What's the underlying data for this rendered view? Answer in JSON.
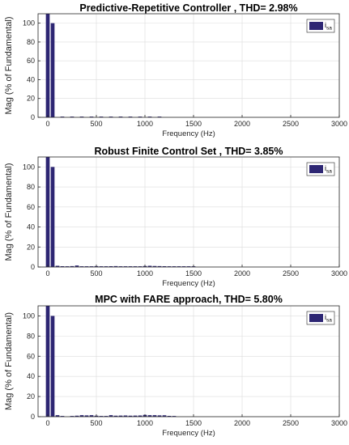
{
  "colors": {
    "bar": "#2d2673",
    "grid": "#dcdcdc",
    "axis": "#262626"
  },
  "chart_data": [
    {
      "type": "bar",
      "title": "Predictive-Repetitive Controller , THD= 2.98%",
      "xlabel": "Frequency (Hz)",
      "ylabel": "Mag (% of Fundamental)",
      "xlim": [
        -100,
        3000
      ],
      "ylim": [
        0,
        110
      ],
      "grid": true,
      "legend": {
        "label": "i",
        "subscript": "sa",
        "position": "top-right"
      },
      "xticks": [
        0,
        500,
        1000,
        1500,
        2000,
        2500,
        3000
      ],
      "yticks": [
        0,
        20,
        40,
        60,
        80,
        100
      ],
      "x": [
        0,
        50,
        150,
        250,
        350,
        450,
        550,
        650,
        750,
        850,
        950,
        1050,
        1150
      ],
      "values": [
        110,
        100,
        0.4,
        0.5,
        0.4,
        0.4,
        0.5,
        0.7,
        0.8,
        0.6,
        0.3,
        0.3,
        0.2
      ]
    },
    {
      "type": "bar",
      "title": "Robust Finite Control Set , THD= 3.85%",
      "xlabel": "Frequency (Hz)",
      "ylabel": "Mag (% of Fundamental)",
      "xlim": [
        -100,
        3000
      ],
      "ylim": [
        0,
        110
      ],
      "grid": true,
      "legend": {
        "label": "i",
        "subscript": "sa",
        "position": "top-right"
      },
      "xticks": [
        0,
        500,
        1000,
        1500,
        2000,
        2500,
        3000
      ],
      "yticks": [
        0,
        20,
        40,
        60,
        80,
        100
      ],
      "x": [
        0,
        50,
        100,
        150,
        200,
        250,
        300,
        350,
        400,
        450,
        500,
        550,
        600,
        650,
        700,
        750,
        800,
        850,
        900,
        950,
        1000,
        1050,
        1100,
        1150,
        1200,
        1250,
        1300,
        1350,
        1400,
        1450,
        1500
      ],
      "values": [
        110,
        100,
        1.2,
        0.8,
        0.6,
        0.9,
        1.5,
        0.5,
        0.4,
        0.5,
        0.9,
        0.6,
        0.5,
        0.8,
        0.9,
        0.4,
        0.3,
        0.3,
        0.3,
        0.3,
        1.0,
        1.2,
        1.0,
        0.9,
        0.8,
        0.6,
        0.4,
        0.3,
        0.3,
        0.4,
        0.2
      ]
    },
    {
      "type": "bar",
      "title": "MPC with FARE approach, THD= 5.80%",
      "xlabel": "Frequency (Hz)",
      "ylabel": "Mag (% of Fundamental)",
      "xlim": [
        -100,
        3000
      ],
      "ylim": [
        0,
        110
      ],
      "grid": true,
      "legend": {
        "label": "i",
        "subscript": "sa",
        "position": "top-right"
      },
      "xticks": [
        0,
        500,
        1000,
        1500,
        2000,
        2500,
        3000
      ],
      "yticks": [
        0,
        20,
        40,
        60,
        80,
        100
      ],
      "x": [
        0,
        50,
        100,
        150,
        250,
        300,
        350,
        400,
        450,
        500,
        550,
        600,
        650,
        700,
        750,
        800,
        850,
        900,
        950,
        1000,
        1050,
        1100,
        1150,
        1200,
        1250,
        1300
      ],
      "values": [
        110,
        100,
        1.5,
        0.4,
        0.5,
        1.0,
        1.5,
        1.3,
        1.5,
        1.0,
        0.6,
        0.7,
        1.5,
        1.0,
        1.1,
        1.2,
        1.0,
        1.1,
        1.2,
        1.8,
        1.5,
        1.5,
        1.3,
        1.4,
        0.8,
        0.3
      ]
    }
  ]
}
